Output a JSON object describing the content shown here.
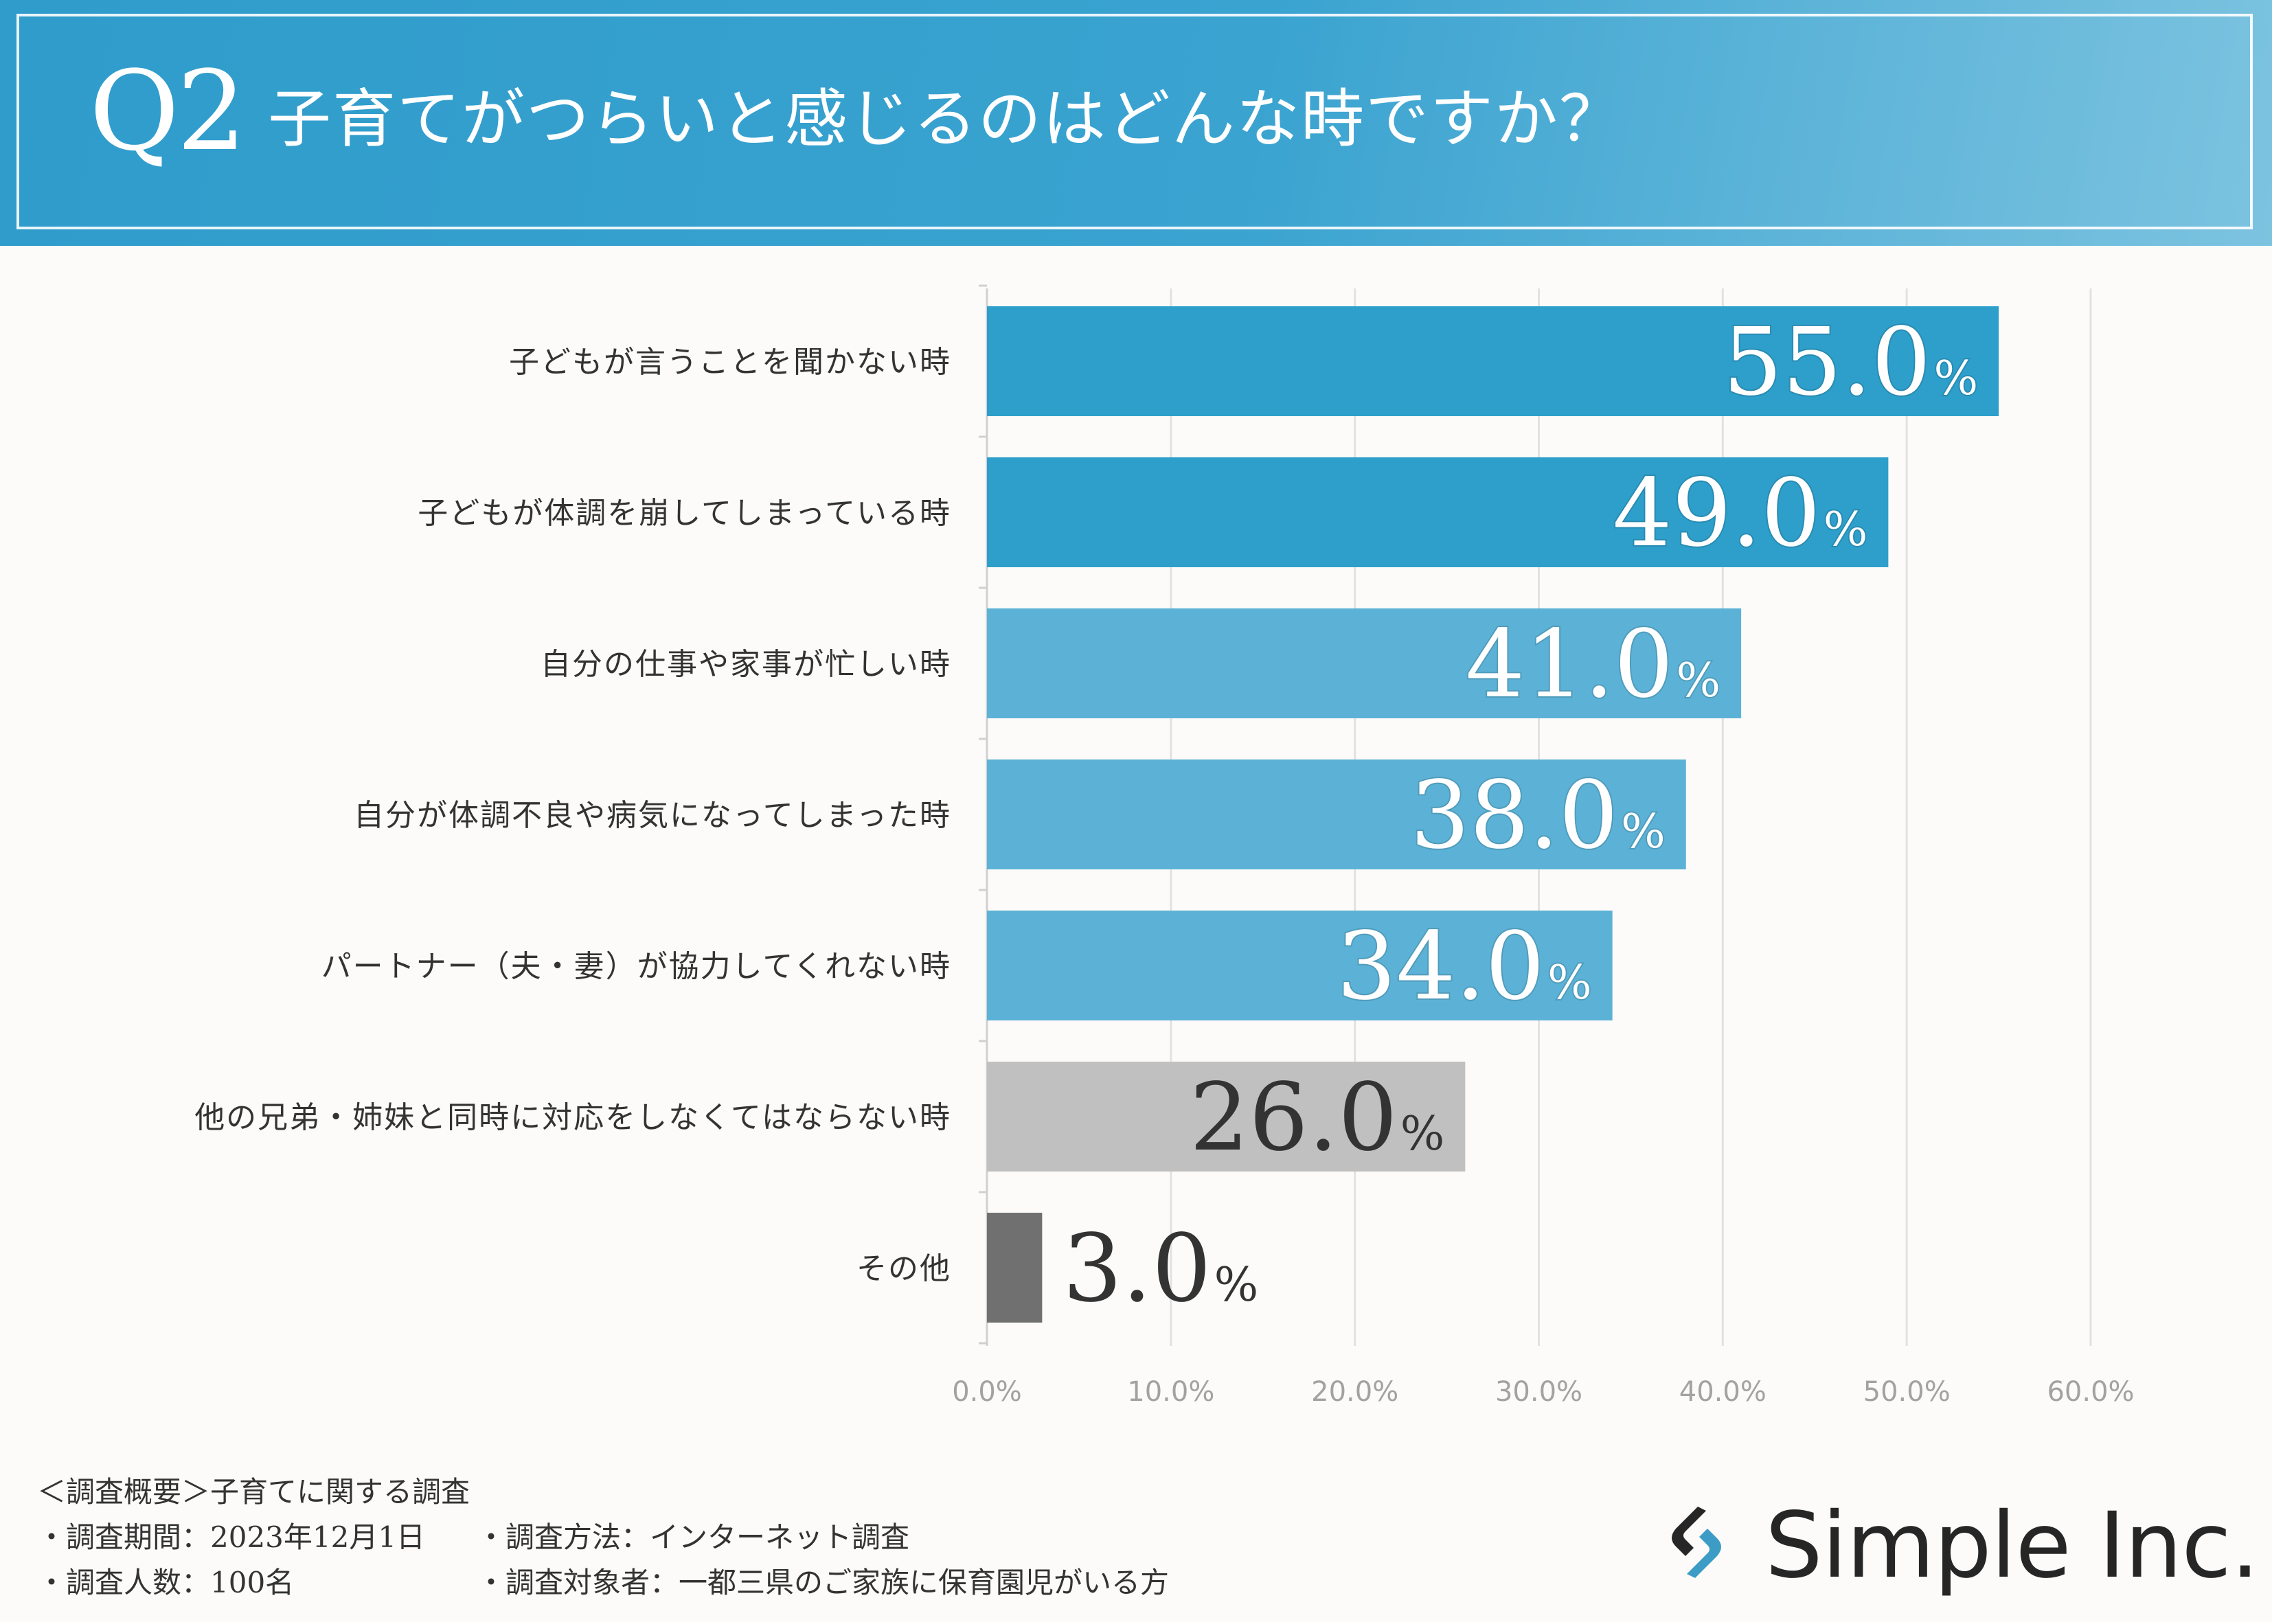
{
  "header": {
    "q_label": "Q2",
    "title": "子育てがつらいと感じるのはどんな時ですか？"
  },
  "chart_data": {
    "type": "bar",
    "orientation": "horizontal",
    "categories": [
      "子どもが言うことを聞かない時",
      "子どもが体調を崩してしまっている時",
      "自分の仕事や家事が忙しい時",
      "自分が体調不良や病気になってしまった時",
      "パートナー（夫・妻）が協力してくれない時",
      "他の兄弟・姉妹と同時に対応をしなくてはならない時",
      "その他"
    ],
    "values": [
      55.0,
      49.0,
      41.0,
      38.0,
      34.0,
      26.0,
      3.0
    ],
    "value_labels": [
      "55.0",
      "49.0",
      "41.0",
      "38.0",
      "34.0",
      "26.0",
      "3.0"
    ],
    "value_suffix": "%",
    "bar_colors": [
      "#2e9fcb",
      "#2e9fcb",
      "#5cb2d6",
      "#5cb2d6",
      "#5cb2d6",
      "#c0c0c0",
      "#707070"
    ],
    "label_colors": [
      "#ffffff",
      "#ffffff",
      "#ffffff",
      "#ffffff",
      "#ffffff",
      "#333333",
      "#333333"
    ],
    "xlim": [
      0,
      60
    ],
    "xticks": [
      "0.0%",
      "10.0%",
      "20.0%",
      "30.0%",
      "40.0%",
      "50.0%",
      "60.0%"
    ],
    "grid": true,
    "title": "子育てがつらいと感じるのはどんな時ですか？"
  },
  "footer": {
    "summary": "＜調査概要＞子育てに関する調査",
    "period": "・調査期間：2023年12月1日",
    "method": "・調査方法：インターネット調査",
    "respondents": "・調査人数：100名",
    "target": "・調査対象者：一都三県のご家族に保育園児がいる方"
  },
  "logo": {
    "text": "Simple Inc.",
    "icon": "link-chain-icon",
    "colors": {
      "dark": "#262626",
      "accent": "#3d9cc6"
    }
  }
}
